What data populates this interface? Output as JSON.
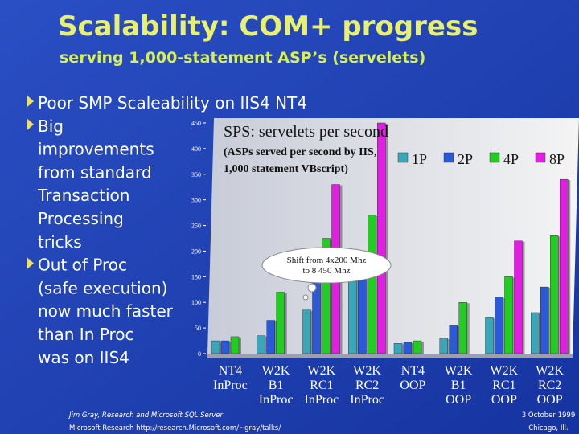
{
  "slide": {
    "title": "Scalability: COM+ progress",
    "subtitle": "serving 1,000-statement ASP’s (servelets)",
    "bullets": [
      [
        "Poor SMP Scaleability on IIS4 NT4"
      ],
      [
        "Big",
        "improvements",
        "from standard",
        "Transaction",
        "Processing",
        "tricks"
      ],
      [
        "Out of Proc",
        "(safe execution)",
        "now much faster",
        "than In Proc",
        "was on IIS4"
      ]
    ],
    "footer_left": [
      "Jim Gray, Research and Microsoft SQL Server",
      "Microsoft Research http://research.Microsoft.com/~gray/talks/"
    ],
    "footer_right": [
      "3 October 1999",
      "Chicago, Ill."
    ]
  },
  "chart_data": {
    "type": "bar",
    "title": "SPS: servelets per second",
    "subtitle": [
      "(ASPs served per second by IIS,",
      "1,000 statement VBscript)"
    ],
    "annotation": [
      "Shift from 4x200 Mhz",
      "to 8 450 Mhz"
    ],
    "categories": [
      [
        "NT4",
        "InProc"
      ],
      [
        "W2K",
        "B1",
        "InProc"
      ],
      [
        "W2K",
        "RC1",
        "InProc"
      ],
      [
        "W2K",
        "RC2",
        "InProc"
      ],
      [
        "NT4",
        "OOP"
      ],
      [
        "W2K",
        "B1",
        "OOP"
      ],
      [
        "W2K",
        "RC1",
        "OOP"
      ],
      [
        "W2K",
        "RC2",
        "OOP"
      ]
    ],
    "series": [
      {
        "name": "1P",
        "color": "#3aa6b8",
        "values": [
          25,
          35,
          85,
          145,
          20,
          30,
          70,
          80
        ]
      },
      {
        "name": "2P",
        "color": "#2a5ad8",
        "values": [
          25,
          65,
          140,
          170,
          22,
          55,
          110,
          130
        ]
      },
      {
        "name": "4P",
        "color": "#22cc22",
        "values": [
          33,
          120,
          225,
          270,
          25,
          100,
          150,
          230
        ]
      },
      {
        "name": "8P",
        "color": "#e020e0",
        "values": [
          null,
          null,
          330,
          450,
          null,
          null,
          220,
          340
        ]
      }
    ],
    "ylim": [
      0,
      450
    ],
    "yticks": [
      0,
      50,
      100,
      150,
      200,
      250,
      300,
      350,
      400,
      450
    ],
    "legend": "top-right"
  }
}
